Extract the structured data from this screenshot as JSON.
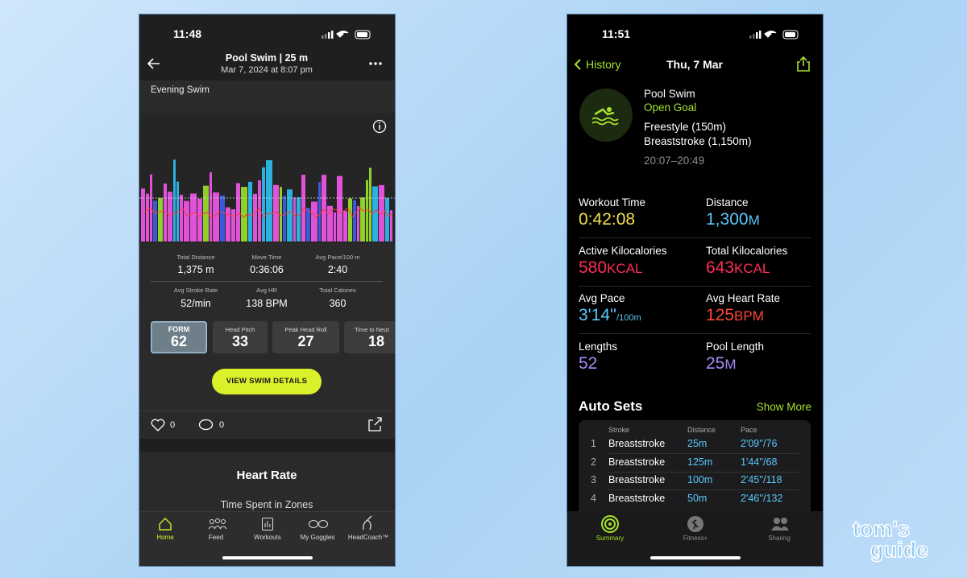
{
  "left_phone": {
    "status_time": "11:48",
    "header": {
      "title": "Pool Swim | 25 m",
      "subtitle": "Mar 7, 2024 at 8:07 pm"
    },
    "workout_name": "Evening Swim",
    "stats": [
      {
        "label": "Total Distance",
        "value": "1,375 m"
      },
      {
        "label": "Move Time",
        "value": "0:36:06"
      },
      {
        "label": "Avg Pace/100 m",
        "value": "2:40"
      },
      {
        "label": "Avg Stroke Rate",
        "value": "52/min"
      },
      {
        "label": "Avg HR",
        "value": "138 BPM"
      },
      {
        "label": "Total Calories",
        "value": "360"
      }
    ],
    "metrics": [
      {
        "label": "FORM",
        "value": "62"
      },
      {
        "label": "Head Pitch",
        "value": "33"
      },
      {
        "label": "Peak Head Roll",
        "value": "27"
      },
      {
        "label": "Time to Neut",
        "value": "18"
      }
    ],
    "button": "VIEW SWIM DETAILS",
    "likes": "0",
    "comments": "0",
    "section_title": "Heart Rate",
    "section_subtitle": "Time Spent in Zones",
    "tabs": [
      "Home",
      "Feed",
      "Workouts",
      "My Goggles",
      "HeadCoach™"
    ]
  },
  "right_phone": {
    "status_time": "11:51",
    "nav": {
      "back": "History",
      "date": "Thu, 7 Mar"
    },
    "workout": {
      "title": "Pool Swim",
      "goal": "Open Goal",
      "strokes": [
        "Freestyle (150m)",
        "Breaststroke (1,150m)"
      ],
      "time_range": "20:07–20:49"
    },
    "metrics": [
      {
        "label": "Workout Time",
        "value": "0:42:08"
      },
      {
        "label": "Distance",
        "value": "1,300",
        "unit": "M"
      },
      {
        "label": "Active Kilocalories",
        "value": "580",
        "unit": "KCAL"
      },
      {
        "label": "Total Kilocalories",
        "value": "643",
        "unit": "KCAL"
      },
      {
        "label": "Avg Pace",
        "value": "3'14''",
        "unit": "/100m"
      },
      {
        "label": "Avg Heart Rate",
        "value": "125",
        "unit": "BPM"
      },
      {
        "label": "Lengths",
        "value": "52"
      },
      {
        "label": "Pool Length",
        "value": "25",
        "unit": "M"
      }
    ],
    "auto_sets": {
      "title": "Auto Sets",
      "more": "Show More",
      "columns": [
        "Stroke",
        "Distance",
        "Pace"
      ],
      "rows": [
        [
          "1",
          "Breaststroke",
          "25m",
          "2'09''/76"
        ],
        [
          "2",
          "Breaststroke",
          "125m",
          "1'44''/68"
        ],
        [
          "3",
          "Breaststroke",
          "100m",
          "2'45''/118"
        ],
        [
          "4",
          "Breaststroke",
          "50m",
          "2'46''/132"
        ]
      ]
    },
    "tabs": [
      "Summary",
      "Fitness+",
      "Sharing"
    ]
  },
  "watermark": {
    "line1": "tom's",
    "line2": "guide"
  }
}
